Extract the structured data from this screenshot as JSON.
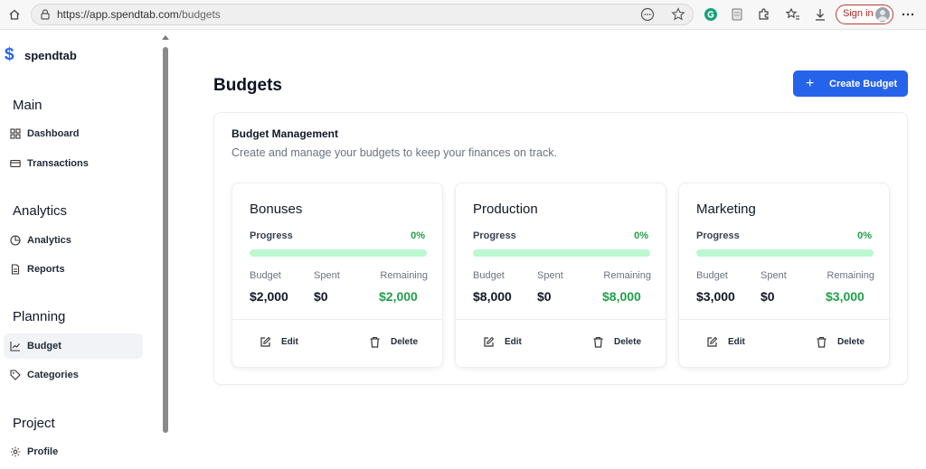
{
  "browser": {
    "url_host": "https://app.spendtab.com",
    "url_path": "/budgets",
    "signin_label": "Sign in"
  },
  "sidebar": {
    "brand": "spendtab",
    "sections": [
      {
        "title": "Main",
        "items": [
          {
            "label": "Dashboard",
            "icon": "dashboard-icon"
          },
          {
            "label": "Transactions",
            "icon": "card-icon"
          }
        ]
      },
      {
        "title": "Analytics",
        "items": [
          {
            "label": "Analytics",
            "icon": "pie-chart-icon"
          },
          {
            "label": "Reports",
            "icon": "document-icon"
          }
        ]
      },
      {
        "title": "Planning",
        "items": [
          {
            "label": "Budget",
            "icon": "line-chart-icon",
            "active": true
          },
          {
            "label": "Categories",
            "icon": "tag-icon"
          }
        ]
      },
      {
        "title": "Project",
        "items": [
          {
            "label": "Profile",
            "icon": "settings-icon"
          }
        ]
      }
    ]
  },
  "main": {
    "title": "Budgets",
    "create_button": "Create Budget",
    "panel": {
      "title": "Budget Management",
      "description": "Create and manage your budgets to keep your finances on track."
    },
    "labels": {
      "progress": "Progress",
      "budget": "Budget",
      "spent": "Spent",
      "remaining": "Remaining",
      "edit": "Edit",
      "delete": "Delete"
    },
    "budgets": [
      {
        "name": "Bonuses",
        "progress_text": "0%",
        "progress": 0,
        "budget": "$2,000",
        "spent": "$0",
        "remaining": "$2,000"
      },
      {
        "name": "Production",
        "progress_text": "0%",
        "progress": 0,
        "budget": "$8,000",
        "spent": "$0",
        "remaining": "$8,000"
      },
      {
        "name": "Marketing",
        "progress_text": "0%",
        "progress": 0,
        "budget": "$3,000",
        "spent": "$0",
        "remaining": "$3,000"
      }
    ]
  },
  "colors": {
    "accent": "#2563eb",
    "positive": "#22a04b",
    "progress_track": "#bbf7d0"
  }
}
